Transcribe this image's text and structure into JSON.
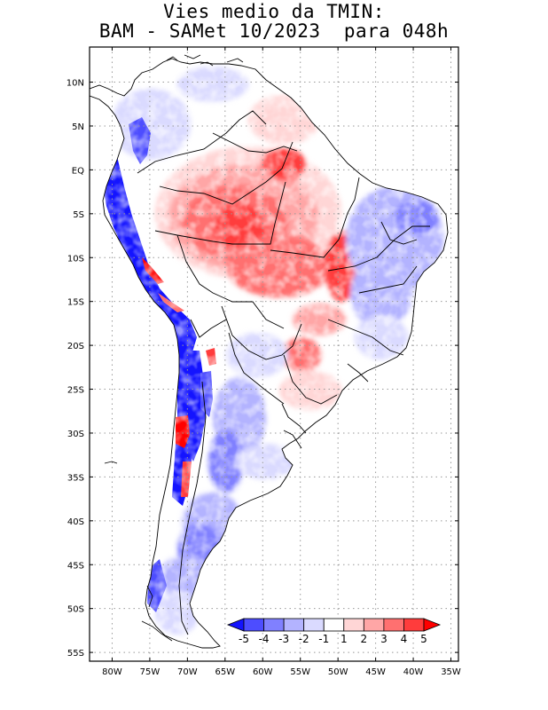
{
  "title": {
    "line1": "Vies medio da TMIN:",
    "line2": "BAM - SAMet 10/2023  para 048h"
  },
  "map": {
    "region": "South America",
    "lon_range": [
      -83,
      -34
    ],
    "lat_range": [
      -56,
      14
    ],
    "grid": "dotted",
    "lat_labels": [
      "10N",
      "5N",
      "EQ",
      "5S",
      "10S",
      "15S",
      "20S",
      "25S",
      "30S",
      "35S",
      "40S",
      "45S",
      "50S",
      "55S"
    ],
    "lon_labels": [
      "80W",
      "75W",
      "70W",
      "65W",
      "60W",
      "55W",
      "50W",
      "45W",
      "40W",
      "35W"
    ]
  },
  "colorbar": {
    "placement": "bottom-right, inside map",
    "labels": [
      "-5",
      "-4",
      "-3",
      "-2",
      "-1",
      "1",
      "2",
      "3",
      "4",
      "5"
    ],
    "colors": [
      "#1414ff",
      "#4d4dff",
      "#8080ff",
      "#b3b3ff",
      "#dadaff",
      "#ffffff",
      "#ffd6d6",
      "#ffa6a6",
      "#ff7070",
      "#ff3c3c",
      "#ff0000"
    ]
  }
}
